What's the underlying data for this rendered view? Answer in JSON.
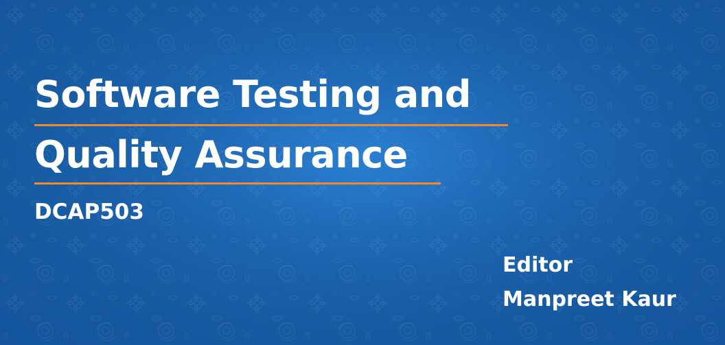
{
  "cover": {
    "title_line_1": "Software Testing and",
    "title_line_2": "Quality Assurance",
    "course_code": "DCAP503",
    "editor_label": "Editor",
    "editor_name": "Manpreet Kaur"
  },
  "colors": {
    "background": "#1f6fc2",
    "text": "#ffffff",
    "accent_underline": "#f08a2c"
  }
}
